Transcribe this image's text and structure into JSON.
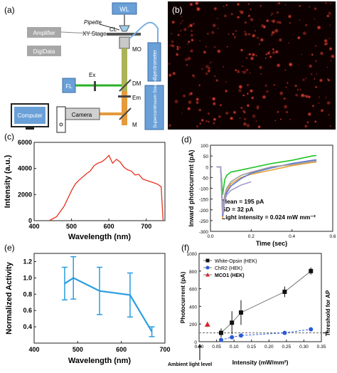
{
  "panels": {
    "a": {
      "letter": "(a)",
      "labels": {
        "wl": "WL",
        "pipette": "Pipette",
        "cl": "CL",
        "xy_stage": "XY Stage",
        "mo": "MO",
        "amplifier": "Amplifier",
        "digidata": "DigiData",
        "spectrometer": "Spectrometer",
        "supercontinuum": "Supercontinuum Source",
        "ex": "Ex",
        "fl": "FL",
        "dm": "DM",
        "em": "Em",
        "computer": "Computer",
        "camera": "Camera",
        "m": "M"
      }
    },
    "b": {
      "letter": "(b)"
    },
    "c": {
      "letter": "(c)"
    },
    "d": {
      "letter": "(d)",
      "stats": [
        "Mean = 195 pA",
        "SD = 32 pA",
        "Light intensity = 0.024 mW mm⁻²"
      ]
    },
    "e": {
      "letter": "(e)"
    },
    "f": {
      "letter": "(f)",
      "ambient_label": "Ambient light level",
      "threshold_label": "Threshold for AP"
    }
  },
  "chart_data": [
    {
      "panel": "c",
      "type": "line",
      "xlabel": "Wavelength (nm)",
      "ylabel": "Intensity (a.u.)",
      "xlim": [
        400,
        750
      ],
      "ylim": [
        0,
        6000
      ],
      "xticks": [
        400,
        500,
        600,
        700
      ],
      "yticks": [
        0,
        2000,
        4000,
        6000
      ],
      "color": "#e8311e",
      "series": [
        {
          "x": [
            440,
            460,
            480,
            500,
            510,
            520,
            530,
            540,
            550,
            560,
            570,
            580,
            590,
            600,
            610,
            620,
            630,
            640,
            650,
            660,
            670,
            680,
            690,
            700,
            710,
            720,
            730,
            740,
            745
          ],
          "values": [
            0,
            300,
            1100,
            2300,
            2800,
            3100,
            3350,
            3600,
            3800,
            4200,
            4400,
            4500,
            4700,
            5000,
            4400,
            4700,
            4500,
            4100,
            3900,
            3800,
            3500,
            3550,
            3200,
            3100,
            3000,
            2900,
            2800,
            2600,
            0
          ]
        }
      ]
    },
    {
      "panel": "d",
      "type": "line",
      "xlabel": "Time (sec)",
      "ylabel": "Inward photocurrent (pA)",
      "xlim": [
        0,
        0.6
      ],
      "ylim": [
        -300,
        100
      ],
      "xticks": [
        0,
        0.2,
        0.4,
        0.6
      ],
      "xtick_labels": [
        "0.0",
        "0.2",
        "0.4",
        "0.6"
      ],
      "yticks": [
        -300,
        -250,
        -200,
        -150,
        -100,
        -50,
        0,
        50,
        100
      ],
      "series": [
        {
          "color": "#22c42a",
          "x": [
            0.03,
            0.05,
            0.06,
            0.07,
            0.08,
            0.1,
            0.15,
            0.2,
            0.3,
            0.4,
            0.5,
            0.52
          ],
          "values": [
            0,
            0,
            -130,
            -60,
            -40,
            -25,
            -15,
            -5,
            15,
            30,
            50,
            52
          ]
        },
        {
          "color": "#e8a23a",
          "x": [
            0.03,
            0.05,
            0.06,
            0.07,
            0.08,
            0.1,
            0.15,
            0.2,
            0.3,
            0.4,
            0.5,
            0.52
          ],
          "values": [
            0,
            0,
            -240,
            -150,
            -110,
            -80,
            -50,
            -35,
            -15,
            5,
            20,
            22
          ]
        },
        {
          "color": "#5b77d6",
          "x": [
            0.03,
            0.05,
            0.06,
            0.07,
            0.08,
            0.1,
            0.15,
            0.2,
            0.3,
            0.4,
            0.5,
            0.52
          ],
          "values": [
            0,
            0,
            -230,
            -160,
            -120,
            -90,
            -55,
            -30,
            -5,
            15,
            30,
            32
          ]
        },
        {
          "color": "#9e9e9e",
          "x": [
            0.03,
            0.05,
            0.06,
            0.07,
            0.08,
            0.1,
            0.15,
            0.2,
            0.3,
            0.4,
            0.5,
            0.52
          ],
          "values": [
            0,
            0,
            -200,
            -130,
            -100,
            -70,
            -40,
            -25,
            0,
            10,
            25,
            27
          ]
        },
        {
          "color": "#a79bc9",
          "x": [
            0.03,
            0.05,
            0.06,
            0.07,
            0.08,
            0.1,
            0.15,
            0.2
          ],
          "values": [
            0,
            0,
            -220,
            -160,
            -130,
            -110,
            -85,
            -70
          ]
        }
      ]
    },
    {
      "panel": "e",
      "type": "line",
      "xlabel": "Wavelength (nm)",
      "ylabel": "Normalized Activity",
      "xlim": [
        400,
        700
      ],
      "ylim": [
        0.2,
        1.3
      ],
      "xticks": [
        400,
        500,
        600,
        700
      ],
      "yticks": [
        0.4,
        0.6,
        0.8,
        1.0,
        1.2
      ],
      "ytick_labels": [
        "0.4",
        "0.6",
        "0.8",
        "1.0",
        "1.2"
      ],
      "color": "#2a9de0",
      "series": [
        {
          "x": [
            470,
            490,
            550,
            620,
            670
          ],
          "values": [
            0.93,
            1.0,
            0.84,
            0.79,
            0.34
          ],
          "error": [
            0.2,
            0.26,
            0.29,
            0.27,
            0.06
          ]
        }
      ]
    },
    {
      "panel": "f",
      "type": "scatter",
      "xlabel": "Intensity  (mW/mm²)",
      "ylabel": "Photocurrent (pA)",
      "xlim": [
        0,
        0.35
      ],
      "ylim": [
        0,
        1000
      ],
      "xticks": [
        0.0,
        0.05,
        0.1,
        0.15,
        0.2,
        0.25,
        0.3,
        0.35
      ],
      "xtick_labels": [
        "0.00",
        "0.05",
        "0.10",
        "0.15",
        "0.20",
        "0.25",
        "0.30",
        "0.35"
      ],
      "yticks": [
        0,
        200,
        400,
        600,
        800,
        1000
      ],
      "legend": "top-left",
      "threshold_y": 100,
      "ambient_x": 0.002,
      "series": [
        {
          "name": "White-Opsin (HEK)",
          "color": "#111111",
          "marker": "square",
          "x": [
            0.063,
            0.094,
            0.12,
            0.245,
            0.32
          ],
          "values": [
            100,
            215,
            330,
            565,
            800
          ],
          "error": [
            50,
            130,
            140,
            60,
            40
          ]
        },
        {
          "name": "ChR2 (HEK)",
          "color": "#2a5ad6",
          "marker": "circle",
          "x": [
            0.063,
            0.094,
            0.12,
            0.245,
            0.32
          ],
          "values": [
            20,
            50,
            70,
            100,
            140
          ],
          "error": [
            0,
            0,
            0,
            0,
            0
          ]
        },
        {
          "name": "MCO1 (HEK)",
          "color": "#d6262a",
          "marker": "triangle",
          "x": [
            0.024
          ],
          "values": [
            195
          ],
          "error": [
            30
          ]
        }
      ]
    }
  ]
}
